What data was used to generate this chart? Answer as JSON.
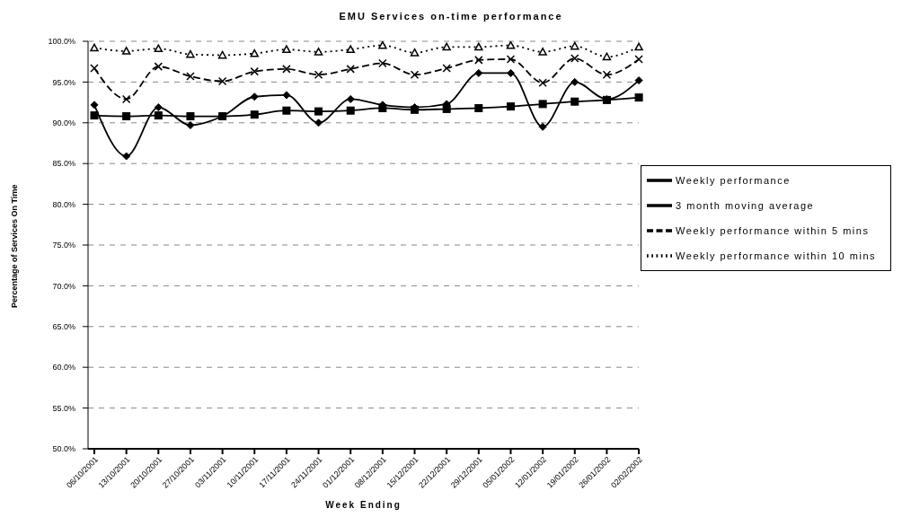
{
  "chart_data": {
    "type": "line",
    "title": "EMU Services on-time performance",
    "xlabel": "Week Ending",
    "ylabel": "Percentage of Services On Time",
    "categories": [
      "06/10/2001",
      "13/10/2001",
      "20/10/2001",
      "27/10/2001",
      "03/11/2001",
      "10/11/2001",
      "17/11/2001",
      "24/11/2001",
      "01/12/2001",
      "08/12/2001",
      "15/12/2001",
      "22/12/2001",
      "29/12/2001",
      "05/01/2002",
      "12/01/2002",
      "19/01/2002",
      "26/01/2002",
      "02/02/2002"
    ],
    "series": [
      {
        "name": "Weekly performance",
        "color": "#000000",
        "marker": "diamond",
        "line_style": "solid",
        "values": [
          92.2,
          85.9,
          91.9,
          89.7,
          90.8,
          93.2,
          93.4,
          90.0,
          92.9,
          92.2,
          91.9,
          92.3,
          96.1,
          96.1,
          89.5,
          95.0,
          92.9,
          95.2
        ]
      },
      {
        "name": "3 month moving average",
        "color": "#000000",
        "marker": "square",
        "line_style": "solid",
        "values": [
          90.9,
          90.8,
          90.9,
          90.8,
          90.8,
          91.0,
          91.5,
          91.4,
          91.5,
          91.8,
          91.6,
          91.7,
          91.8,
          92.0,
          92.3,
          92.6,
          92.8,
          93.1
        ]
      },
      {
        "name": "Weekly performance within 5 mins",
        "color": "#000000",
        "marker": "cross",
        "line_style": "dashed",
        "values": [
          96.7,
          92.9,
          96.9,
          95.7,
          95.1,
          96.3,
          96.6,
          95.9,
          96.6,
          97.3,
          95.9,
          96.7,
          97.7,
          97.8,
          94.9,
          97.9,
          95.9,
          97.8
        ]
      },
      {
        "name": "Weekly performance within 10 mins",
        "color": "#000000",
        "marker": "triangle",
        "line_style": "dotted",
        "values": [
          99.2,
          98.8,
          99.1,
          98.4,
          98.3,
          98.5,
          99.0,
          98.7,
          99.0,
          99.5,
          98.6,
          99.3,
          99.3,
          99.5,
          98.7,
          99.4,
          98.1,
          99.3
        ]
      }
    ],
    "ylim": [
      50,
      100
    ],
    "yticks": [
      {
        "value": 50,
        "label": "50.0%"
      },
      {
        "value": 55,
        "label": "55.0%"
      },
      {
        "value": 60,
        "label": "60.0%"
      },
      {
        "value": 65,
        "label": "65.0%"
      },
      {
        "value": 70,
        "label": "70.0%"
      },
      {
        "value": 75,
        "label": "75.0%"
      },
      {
        "value": 80,
        "label": "80.0%"
      },
      {
        "value": 85,
        "label": "85.0%"
      },
      {
        "value": 90,
        "label": "90.0%"
      },
      {
        "value": 95,
        "label": "95.0%"
      },
      {
        "value": 100,
        "label": "100.0%"
      }
    ],
    "grid": "y",
    "legend": "right"
  }
}
